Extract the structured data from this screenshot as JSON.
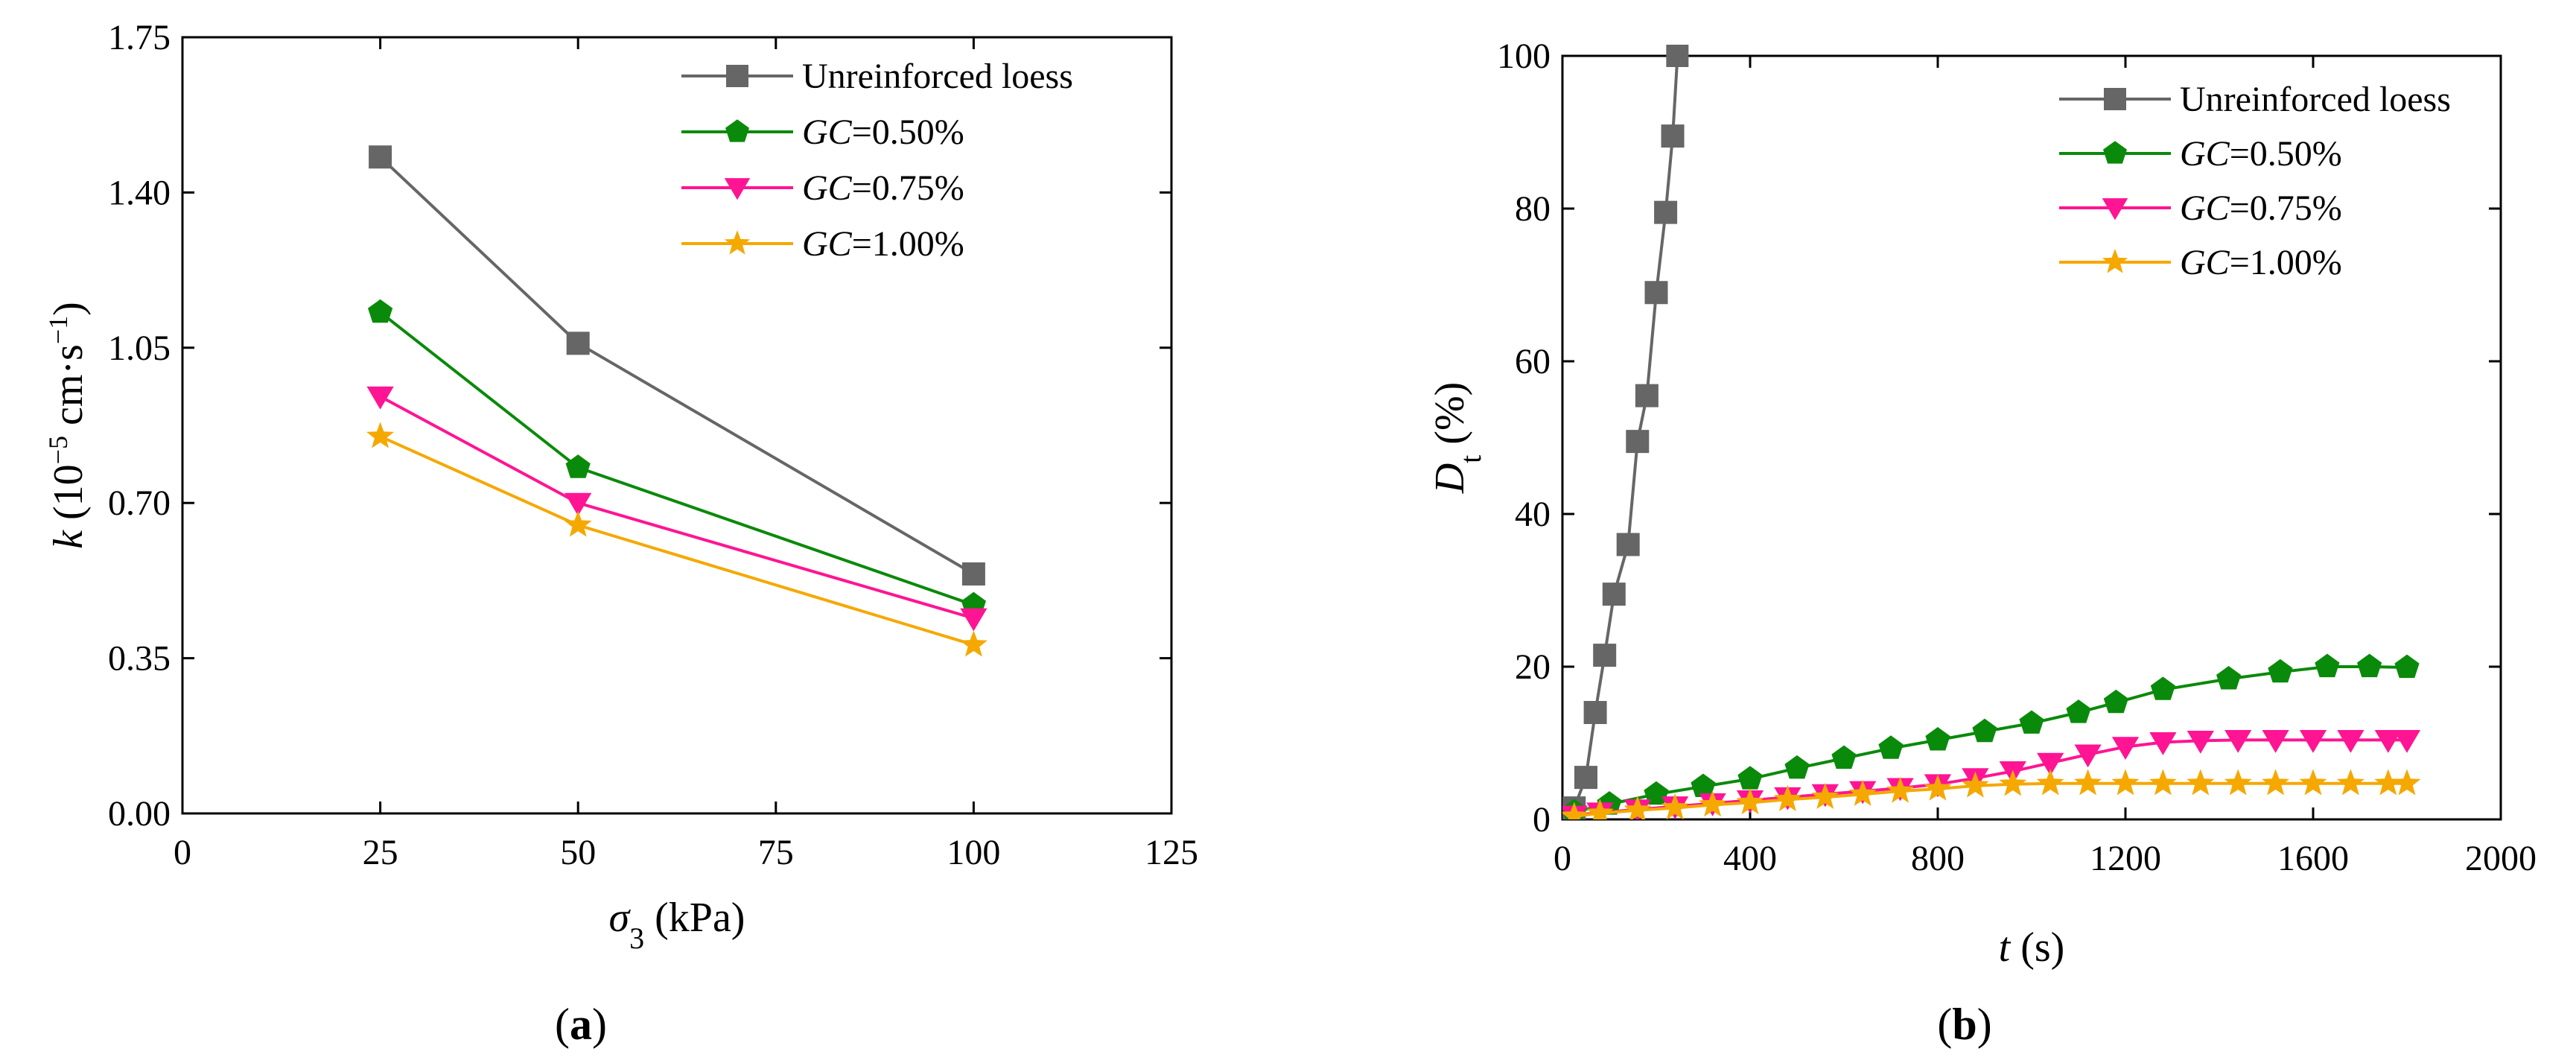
{
  "chart_data": [
    {
      "type": "line",
      "panel_label": "(a)",
      "panel_letter": "a",
      "xlabel": "σ3 (kPa)",
      "xlabel_parts": {
        "symbol": "σ",
        "sub": "3",
        "unit": " (kPa)"
      },
      "ylabel": "k (10⁻⁵ cm·s⁻¹)",
      "ylabel_parts": {
        "symbol": "k",
        "pre": " (10",
        "sup1": "−5",
        "mid": " cm·s",
        "sup2": "−1",
        "post": ")"
      },
      "xlim": [
        0,
        125
      ],
      "ylim": [
        0,
        1.75
      ],
      "xticks": [
        0,
        25,
        50,
        75,
        100,
        125
      ],
      "xtick_labels": [
        "0",
        "25",
        "50",
        "75",
        "100",
        "125"
      ],
      "yticks": [
        0,
        0.35,
        0.7,
        1.05,
        1.4,
        1.75
      ],
      "ytick_labels": [
        "0.00",
        "0.35",
        "0.70",
        "1.05",
        "1.40",
        "1.75"
      ],
      "legend_position": "top-right",
      "x": [
        25,
        50,
        100
      ],
      "series": [
        {
          "name": "Unreinforced loess",
          "name_parts": {
            "italic": "",
            "rest": "Unreinforced loess"
          },
          "color": "#666666",
          "marker": "square",
          "values": [
            1.48,
            1.06,
            0.54
          ]
        },
        {
          "name": "GC=0.50%",
          "name_parts": {
            "italic": "GC",
            "rest": "=0.50%"
          },
          "color": "#0a8a0a",
          "marker": "pentagon",
          "values": [
            1.13,
            0.78,
            0.47
          ]
        },
        {
          "name": "GC=0.75%",
          "name_parts": {
            "italic": "GC",
            "rest": "=0.75%"
          },
          "color": "#ff1493",
          "marker": "triangle-down",
          "values": [
            0.94,
            0.7,
            0.44
          ]
        },
        {
          "name": "GC=1.00%",
          "name_parts": {
            "italic": "GC",
            "rest": "=1.00%"
          },
          "color": "#f5a800",
          "marker": "star",
          "values": [
            0.85,
            0.65,
            0.38
          ]
        }
      ]
    },
    {
      "type": "line",
      "panel_label": "(b)",
      "panel_letter": "b",
      "xlabel": "t (s)",
      "xlabel_parts": {
        "symbol": "t",
        "unit": " (s)"
      },
      "ylabel": "Dt (%)",
      "ylabel_parts": {
        "symbol": "D",
        "sub": "t",
        "unit": " (%)"
      },
      "xlim": [
        0,
        2000
      ],
      "ylim": [
        0,
        100
      ],
      "xticks": [
        0,
        400,
        800,
        1200,
        1600,
        2000
      ],
      "xtick_labels": [
        "0",
        "400",
        "800",
        "1200",
        "1600",
        "2000"
      ],
      "yticks": [
        0,
        20,
        40,
        60,
        80,
        100
      ],
      "ytick_labels": [
        "0",
        "20",
        "40",
        "60",
        "80",
        "100"
      ],
      "legend_position": "top-right",
      "series": [
        {
          "name": "Unreinforced loess",
          "name_parts": {
            "italic": "",
            "rest": "Unreinforced loess"
          },
          "color": "#666666",
          "marker": "square",
          "x": [
            25,
            50,
            70,
            90,
            110,
            140,
            160,
            180,
            200,
            220,
            235
          ],
          "values": [
            1.5,
            5.5,
            14,
            21.5,
            29.5,
            36,
            49.5,
            55.5,
            69,
            79.5,
            89.5
          ]
        },
        {
          "name": "GC=0.50%",
          "name_parts": {
            "italic": "GC",
            "rest": "=0.50%"
          },
          "color": "#0a8a0a",
          "marker": "pentagon",
          "x": [
            25,
            100,
            200,
            300,
            400,
            500,
            600,
            700,
            800,
            900,
            1000,
            1100,
            1180,
            1280,
            1420,
            1530,
            1630,
            1720,
            1800
          ],
          "values": [
            1.0,
            2.0,
            3.3,
            4.3,
            5.3,
            6.7,
            8.0,
            9.3,
            10.4,
            11.5,
            12.6,
            14.0,
            15.3,
            17.0,
            18.4,
            19.3,
            20.0,
            20.0,
            19.9
          ]
        },
        {
          "name": "GC=0.75%",
          "name_parts": {
            "italic": "GC",
            "rest": "=0.75%"
          },
          "color": "#ff1493",
          "marker": "triangle-down",
          "x": [
            25,
            80,
            160,
            240,
            320,
            400,
            480,
            560,
            640,
            720,
            800,
            880,
            960,
            1040,
            1120,
            1200,
            1280,
            1360,
            1440,
            1520,
            1600,
            1680,
            1760,
            1800
          ],
          "values": [
            0.5,
            0.9,
            1.3,
            1.7,
            2.1,
            2.5,
            2.9,
            3.3,
            3.7,
            4.1,
            4.6,
            5.4,
            6.3,
            7.4,
            8.5,
            9.5,
            10.1,
            10.3,
            10.4,
            10.4,
            10.4,
            10.4,
            10.4,
            10.4
          ]
        },
        {
          "name": "GC=1.00%",
          "name_parts": {
            "italic": "GC",
            "rest": "=1.00%"
          },
          "color": "#f5a800",
          "marker": "star",
          "x": [
            25,
            80,
            160,
            240,
            320,
            400,
            480,
            560,
            640,
            720,
            800,
            880,
            960,
            1040,
            1120,
            1200,
            1280,
            1360,
            1440,
            1520,
            1600,
            1680,
            1760,
            1800
          ],
          "values": [
            0.4,
            0.8,
            1.2,
            1.5,
            1.9,
            2.2,
            2.6,
            2.9,
            3.3,
            3.7,
            4.0,
            4.4,
            4.6,
            4.7,
            4.7,
            4.7,
            4.7,
            4.7,
            4.7,
            4.7,
            4.7,
            4.7,
            4.7,
            4.7
          ]
        }
      ]
    }
  ]
}
